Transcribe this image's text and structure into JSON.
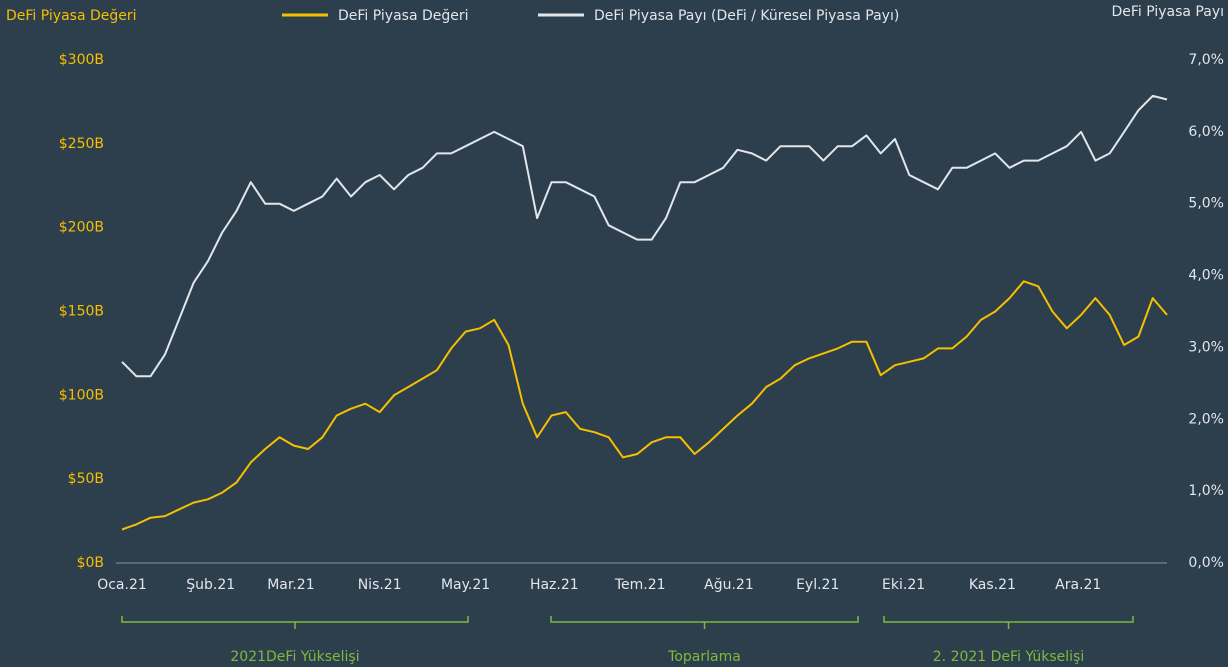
{
  "chart_data": {
    "type": "line",
    "y_axis_title": "DeFi Piyasa Değeri",
    "y2_axis_title": "DeFi Piyasa Payı",
    "x": [
      0,
      5,
      10,
      15,
      20,
      25,
      30,
      35,
      40,
      45,
      50,
      55,
      60,
      65,
      70,
      75,
      80,
      85,
      90,
      95,
      100,
      105,
      110,
      115,
      120,
      125,
      130,
      135,
      140,
      145,
      150,
      155,
      160,
      165,
      170,
      175,
      180,
      185,
      190,
      195,
      200,
      205,
      210,
      215,
      220,
      225,
      230,
      235,
      240,
      245,
      250,
      255,
      260,
      265,
      270,
      275,
      280,
      285,
      290,
      295,
      300,
      305,
      310,
      315,
      320,
      325,
      330,
      335,
      340,
      345,
      350,
      355,
      360,
      365
    ],
    "xlim": [
      0,
      365
    ],
    "xticks": [
      {
        "value": 0,
        "label": "Oca.21"
      },
      {
        "value": 31,
        "label": "Şub.21"
      },
      {
        "value": 59,
        "label": "Mar.21"
      },
      {
        "value": 90,
        "label": "Nis.21"
      },
      {
        "value": 120,
        "label": "May.21"
      },
      {
        "value": 151,
        "label": "Haz.21"
      },
      {
        "value": 181,
        "label": "Tem.21"
      },
      {
        "value": 212,
        "label": "Ağu.21"
      },
      {
        "value": 243,
        "label": "Eyl.21"
      },
      {
        "value": 273,
        "label": "Eki.21"
      },
      {
        "value": 304,
        "label": "Kas.21"
      },
      {
        "value": 334,
        "label": "Ara.21"
      }
    ],
    "ylim": [
      0,
      300
    ],
    "yticks": [
      {
        "value": 0,
        "label": "$0B"
      },
      {
        "value": 50,
        "label": "$50B"
      },
      {
        "value": 100,
        "label": "$100B"
      },
      {
        "value": 150,
        "label": "$150B"
      },
      {
        "value": 200,
        "label": "$200B"
      },
      {
        "value": 250,
        "label": "$250B"
      },
      {
        "value": 300,
        "label": "$300B"
      }
    ],
    "y2lim": [
      0,
      7
    ],
    "y2ticks": [
      {
        "value": 0,
        "label": "0,0%"
      },
      {
        "value": 1,
        "label": "1,0%"
      },
      {
        "value": 2,
        "label": "2,0%"
      },
      {
        "value": 3,
        "label": "3,0%"
      },
      {
        "value": 4,
        "label": "4,0%"
      },
      {
        "value": 5,
        "label": "5,0%"
      },
      {
        "value": 6,
        "label": "6,0%"
      },
      {
        "value": 7,
        "label": "7,0%"
      }
    ],
    "series": [
      {
        "name": "DeFi Piyasa Değeri",
        "color": "#f5c000",
        "axis": "y",
        "values": [
          20,
          23,
          27,
          28,
          32,
          36,
          38,
          42,
          48,
          60,
          68,
          75,
          70,
          68,
          75,
          88,
          92,
          95,
          90,
          100,
          105,
          110,
          115,
          128,
          138,
          140,
          145,
          130,
          95,
          75,
          88,
          90,
          80,
          78,
          75,
          63,
          65,
          72,
          75,
          75,
          65,
          72,
          80,
          88,
          95,
          105,
          110,
          118,
          122,
          125,
          128,
          132,
          132,
          112,
          118,
          120,
          122,
          128,
          128,
          135,
          145,
          150,
          158,
          168,
          165,
          150,
          140,
          148,
          158,
          148,
          130,
          135,
          158,
          148
        ]
      },
      {
        "name": "DeFi Piyasa Payı (DeFi / Küresel Piyasa Payı)",
        "color": "#e2e6ea",
        "axis": "y2",
        "values": [
          2.8,
          2.6,
          2.6,
          2.9,
          3.4,
          3.9,
          4.2,
          4.6,
          4.9,
          5.3,
          5.0,
          5.0,
          4.9,
          5.0,
          5.1,
          5.35,
          5.1,
          5.3,
          5.4,
          5.2,
          5.4,
          5.5,
          5.7,
          5.7,
          5.8,
          5.9,
          6.0,
          5.9,
          5.8,
          4.8,
          5.3,
          5.3,
          5.2,
          5.1,
          4.7,
          4.6,
          4.5,
          4.5,
          4.8,
          5.3,
          5.3,
          5.4,
          5.5,
          5.75,
          5.7,
          5.6,
          5.8,
          5.8,
          5.8,
          5.6,
          5.8,
          5.8,
          5.95,
          5.7,
          5.9,
          5.4,
          5.3,
          5.2,
          5.5,
          5.5,
          5.6,
          5.7,
          5.5,
          5.6,
          5.6,
          5.7,
          5.8,
          6.0,
          5.6,
          5.7,
          6.0,
          6.3,
          6.5,
          6.45
        ]
      }
    ],
    "annotations": [
      {
        "text": "2021DeFi Yükselişi"
      },
      {
        "text": "Toparlama"
      },
      {
        "text": "2. 2021 DeFi Yükselişi"
      }
    ],
    "annotation_color": "#7fba3c",
    "grid": false
  }
}
